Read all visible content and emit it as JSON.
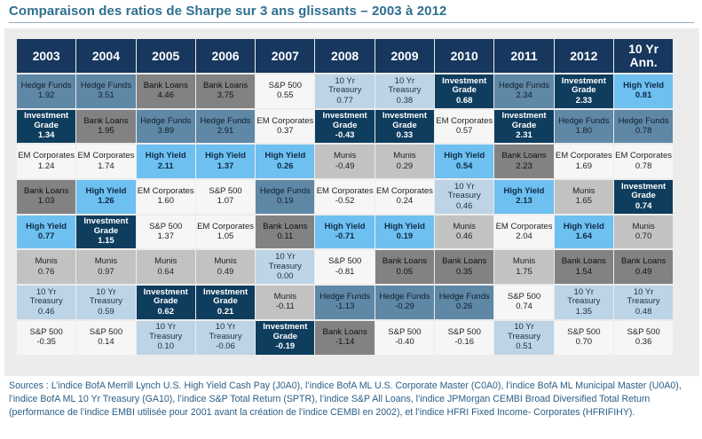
{
  "title": "Comparaison des ratios de Sharpe sur 3 ans glissants – 2003 à 2012",
  "sources": "Sources : L’indice BofA Merrill Lynch U.S. High Yield Cash Pay (J0A0), l’indice  BofA ML U.S. Corporate Master (C0A0), l’indice BofA ML Municipal Master (U0A0), l’indice BofA ML 10 Yr Treasury (GA10), l’indice S&P Total Return (SPTR), l’indice S&P All Loans, l’indice JPMorgan CEMBI Broad Diversified Total Return (performance de l’indice EMBI utilisée pour 2001 avant la création de l’indice CEMBI en 2002), et l’indice HFRI Fixed Income- Corporates (HFRIFIHY).",
  "colors": {
    "Hedge Funds": "#5f87a6",
    "Investment Grade": "#0f3d5e",
    "High Yield": "#6ec0f0",
    "EM Corporates": "#f6f6f6",
    "Bank Loans": "#828282",
    "Munis": "#c2c2c2",
    "10 Yr Treasury": "#bcd4e6",
    "S&P 500": "#f6f6f6"
  },
  "chart_data": {
    "type": "table",
    "title": "Comparaison des ratios de Sharpe sur 3 ans glissants – 2003 à 2012",
    "columns": [
      "2003",
      "2004",
      "2005",
      "2006",
      "2007",
      "2008",
      "2009",
      "2010",
      "2011",
      "2012",
      "10 Yr\nAnn."
    ],
    "rows": [
      [
        {
          "asset": "Hedge Funds",
          "value": "1.92"
        },
        {
          "asset": "Hedge Funds",
          "value": "3.51"
        },
        {
          "asset": "Bank Loans",
          "value": "4.46"
        },
        {
          "asset": "Bank Loans",
          "value": "3.75"
        },
        {
          "asset": "S&P 500",
          "value": "0.55"
        },
        {
          "asset": "10 Yr\nTreasury",
          "value": "0.77"
        },
        {
          "asset": "10 Yr\nTreasury",
          "value": "0.38"
        },
        {
          "asset": "Investment\nGrade",
          "value": "0.68"
        },
        {
          "asset": "Hedge Funds",
          "value": "2.34"
        },
        {
          "asset": "Investment\nGrade",
          "value": "2.33"
        },
        {
          "asset": "High Yield",
          "value": "0.81"
        }
      ],
      [
        {
          "asset": "Investment\nGrade",
          "value": "1.34"
        },
        {
          "asset": "Bank Loans",
          "value": "1.95"
        },
        {
          "asset": "Hedge Funds",
          "value": "3.89"
        },
        {
          "asset": "Hedge Funds",
          "value": "2.91"
        },
        {
          "asset": "EM Corporates",
          "value": "0.37"
        },
        {
          "asset": "Investment\nGrade",
          "value": "-0.43"
        },
        {
          "asset": "Investment\nGrade",
          "value": "0.33"
        },
        {
          "asset": "EM Corporates",
          "value": "0.57"
        },
        {
          "asset": "Investment\nGrade",
          "value": "2.31"
        },
        {
          "asset": "Hedge Funds",
          "value": "1.80"
        },
        {
          "asset": "Hedge Funds",
          "value": "0.78"
        }
      ],
      [
        {
          "asset": "EM Corporates",
          "value": "1.24"
        },
        {
          "asset": "EM Corporates",
          "value": "1.74"
        },
        {
          "asset": "High Yield",
          "value": "2.11"
        },
        {
          "asset": "High Yield",
          "value": "1.37"
        },
        {
          "asset": "High Yield",
          "value": "0.26"
        },
        {
          "asset": "Munis",
          "value": "-0.49"
        },
        {
          "asset": "Munis",
          "value": "0.29"
        },
        {
          "asset": "High Yield",
          "value": "0.54"
        },
        {
          "asset": "Bank Loans",
          "value": "2.23"
        },
        {
          "asset": "EM Corporates",
          "value": "1.69"
        },
        {
          "asset": "EM Corporates",
          "value": "0.78"
        }
      ],
      [
        {
          "asset": "Bank Loans",
          "value": "1.03"
        },
        {
          "asset": "High Yield",
          "value": "1.26"
        },
        {
          "asset": "EM Corporates",
          "value": "1.60"
        },
        {
          "asset": "S&P 500",
          "value": "1.07"
        },
        {
          "asset": "Hedge Funds",
          "value": "0.19"
        },
        {
          "asset": "EM Corporates",
          "value": "-0.52"
        },
        {
          "asset": "EM Corporates",
          "value": "0.24"
        },
        {
          "asset": "10 Yr\nTreasury",
          "value": "0.46"
        },
        {
          "asset": "High Yield",
          "value": "2.13"
        },
        {
          "asset": "Munis",
          "value": "1.65"
        },
        {
          "asset": "Investment\nGrade",
          "value": "0.74"
        }
      ],
      [
        {
          "asset": "High Yield",
          "value": "0.77"
        },
        {
          "asset": "Investment\nGrade",
          "value": "1.15"
        },
        {
          "asset": "S&P 500",
          "value": "1.37"
        },
        {
          "asset": "EM Corporates",
          "value": "1.05"
        },
        {
          "asset": "Bank Loans",
          "value": "0.11"
        },
        {
          "asset": "High Yield",
          "value": "-0.71"
        },
        {
          "asset": "High Yield",
          "value": "0.19"
        },
        {
          "asset": "Munis",
          "value": "0.46"
        },
        {
          "asset": "EM Corporates",
          "value": "2.04"
        },
        {
          "asset": "High Yield",
          "value": "1.64"
        },
        {
          "asset": "Munis",
          "value": "0.70"
        }
      ],
      [
        {
          "asset": "Munis",
          "value": "0.76"
        },
        {
          "asset": "Munis",
          "value": "0.97"
        },
        {
          "asset": "Munis",
          "value": "0.64"
        },
        {
          "asset": "Munis",
          "value": "0.49"
        },
        {
          "asset": "10 Yr\nTreasury",
          "value": "0.00"
        },
        {
          "asset": "S&P 500",
          "value": "-0.81"
        },
        {
          "asset": "Bank Loans",
          "value": "0.05"
        },
        {
          "asset": "Bank Loans",
          "value": "0.35"
        },
        {
          "asset": "Munis",
          "value": "1.75"
        },
        {
          "asset": "Bank Loans",
          "value": "1.54"
        },
        {
          "asset": "Bank Loans",
          "value": "0.49"
        }
      ],
      [
        {
          "asset": "10 Yr\nTreasury",
          "value": "0.46"
        },
        {
          "asset": "10 Yr\nTreasury",
          "value": "0.59"
        },
        {
          "asset": "Investment\nGrade",
          "value": "0.62"
        },
        {
          "asset": "Investment\nGrade",
          "value": "0.21"
        },
        {
          "asset": "Munis",
          "value": "-0.11"
        },
        {
          "asset": "Hedge Funds",
          "value": "-1.13"
        },
        {
          "asset": "Hedge Funds",
          "value": "-0.29"
        },
        {
          "asset": "Hedge Funds",
          "value": "0.26"
        },
        {
          "asset": "S&P 500",
          "value": "0.74"
        },
        {
          "asset": "10 Yr\nTreasury",
          "value": "1.35"
        },
        {
          "asset": "10 Yr\nTreasury",
          "value": "0.48"
        }
      ],
      [
        {
          "asset": "S&P 500",
          "value": "-0.35"
        },
        {
          "asset": "S&P 500",
          "value": "0.14"
        },
        {
          "asset": "10 Yr\nTreasury",
          "value": "0.10"
        },
        {
          "asset": "10 Yr\nTreasury",
          "value": "-0.06"
        },
        {
          "asset": "Investment\nGrade",
          "value": "-0.19"
        },
        {
          "asset": "Bank Loans",
          "value": "-1.14"
        },
        {
          "asset": "S&P 500",
          "value": "-0.40"
        },
        {
          "asset": "S&P 500",
          "value": "-0.16"
        },
        {
          "asset": "10 Yr\nTreasury",
          "value": "0.51"
        },
        {
          "asset": "S&P 500",
          "value": "0.70"
        },
        {
          "asset": "S&P 500",
          "value": "0.36"
        }
      ]
    ]
  }
}
